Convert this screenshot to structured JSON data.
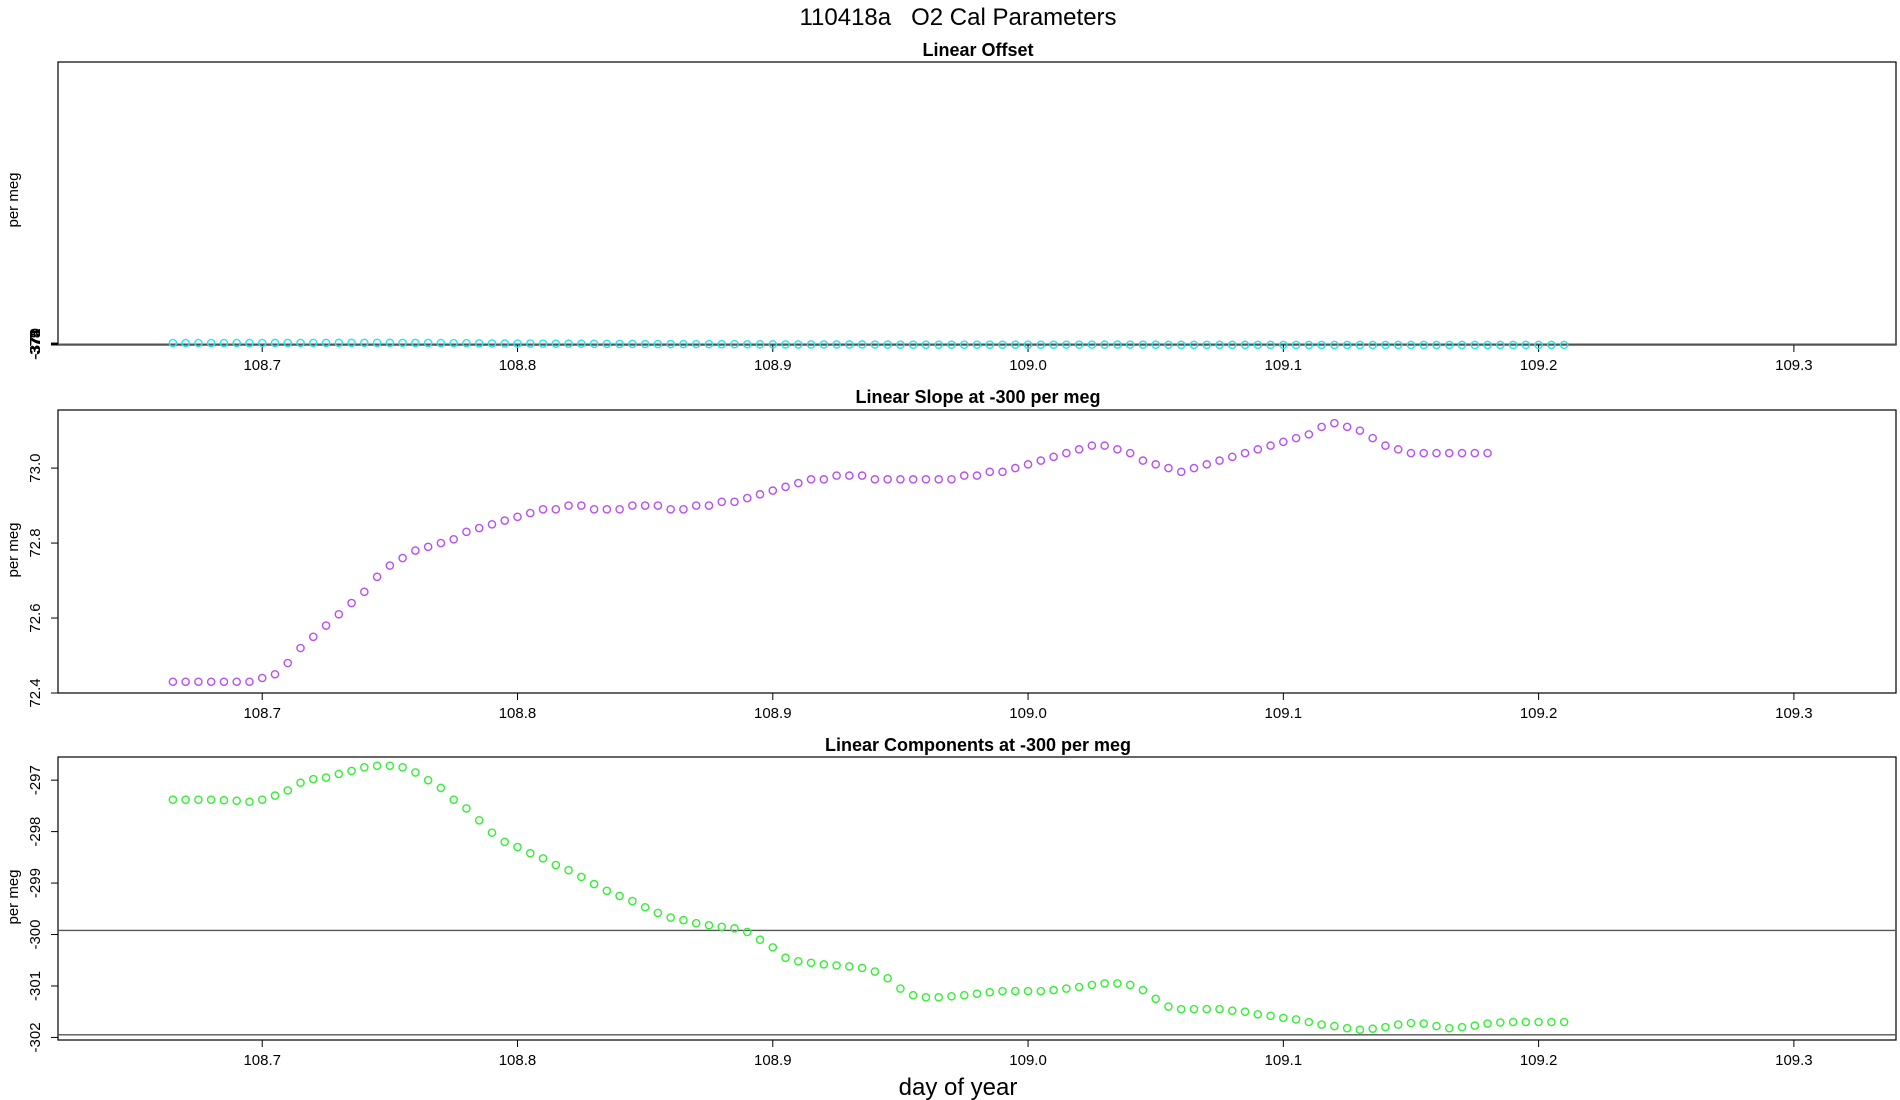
{
  "title": "110418a   O2 Cal Parameters",
  "xlabel": "day of year",
  "chart_data": [
    {
      "type": "scatter",
      "title": "Linear Offset",
      "ylabel": "per meg",
      "color": "#22e5ee",
      "xlim": [
        108.62,
        109.34
      ],
      "ylim": [
        -375.05,
        369.45
      ],
      "xticks": [
        "108.7",
        "108.8",
        "108.9",
        "109.0",
        "109.1",
        "109.2",
        "109.3"
      ],
      "yticks": [
        -375,
        -374,
        -373,
        -372,
        -371,
        -370
      ],
      "hlines": [
        -372.95,
        -374.98
      ],
      "x_start": 108.665,
      "x_step": 0.005,
      "y": [
        -369.8,
        -369.8,
        -369.8,
        -369.8,
        -369.82,
        -369.82,
        -369.85,
        -369.8,
        -369.72,
        -369.6,
        -369.5,
        -369.47,
        -369.45,
        -369.4,
        -369.35,
        -369.3,
        -369.35,
        -369.4,
        -369.45,
        -369.55,
        -369.7,
        -369.85,
        -370.1,
        -370.3,
        -370.6,
        -370.85,
        -371.05,
        -371.2,
        -371.3,
        -371.45,
        -371.55,
        -371.7,
        -371.8,
        -371.95,
        -372.1,
        -372.22,
        -372.35,
        -372.47,
        -372.6,
        -372.65,
        -372.7,
        -372.75,
        -372.8,
        -372.85,
        -372.9,
        -373.05,
        -373.2,
        -373.35,
        -373.47,
        -373.55,
        -373.55,
        -373.58,
        -373.62,
        -373.65,
        -373.7,
        -373.78,
        -373.95,
        -374.15,
        -374.22,
        -374.25,
        -374.25,
        -374.22,
        -374.2,
        -374.18,
        -374.15,
        -374.15,
        -374.15,
        -374.15,
        -374.15,
        -374.15,
        -374.12,
        -374.1,
        -374.05,
        -374.02,
        -374.02,
        -374.05,
        -374.15,
        -374.3,
        -374.45,
        -374.47,
        -374.5,
        -374.5,
        -374.5,
        -374.52,
        -374.55,
        -374.6,
        -374.65,
        -374.7,
        -374.75,
        -374.82,
        -374.87,
        -374.9,
        -374.93,
        -374.95,
        -374.93,
        -374.9,
        -374.87,
        -374.85,
        -374.87,
        -374.9,
        -374.92,
        -374.9,
        -374.88,
        -374.82,
        -374.8,
        -374.78,
        -374.77,
        -374.76,
        -374.75,
        -374.75
      ]
    },
    {
      "type": "scatter",
      "title": "Linear Slope at -300 per meg",
      "ylabel": "per meg",
      "color": "#b84ff0",
      "xlim": [
        108.62,
        109.34
      ],
      "ylim": [
        72.4,
        73.155
      ],
      "xticks": [
        "108.7",
        "108.8",
        "108.9",
        "109.0",
        "109.1",
        "109.2",
        "109.3"
      ],
      "yticks": [
        72.4,
        72.6,
        72.8,
        73.0
      ],
      "hlines": [],
      "x_start": 108.665,
      "x_step": 0.005,
      "y": [
        72.43,
        72.43,
        72.43,
        72.43,
        72.43,
        72.43,
        72.43,
        72.44,
        72.45,
        72.48,
        72.52,
        72.55,
        72.58,
        72.61,
        72.64,
        72.67,
        72.71,
        72.74,
        72.76,
        72.78,
        72.79,
        72.8,
        72.81,
        72.83,
        72.84,
        72.85,
        72.86,
        72.87,
        72.88,
        72.89,
        72.89,
        72.9,
        72.9,
        72.89,
        72.89,
        72.89,
        72.9,
        72.9,
        72.9,
        72.89,
        72.89,
        72.9,
        72.9,
        72.91,
        72.91,
        72.92,
        72.93,
        72.94,
        72.95,
        72.96,
        72.97,
        72.97,
        72.98,
        72.98,
        72.98,
        72.97,
        72.97,
        72.97,
        72.97,
        72.97,
        72.97,
        72.97,
        72.98,
        72.98,
        72.99,
        72.99,
        73.0,
        73.01,
        73.02,
        73.03,
        73.04,
        73.05,
        73.06,
        73.06,
        73.05,
        73.04,
        73.02,
        73.01,
        73.0,
        72.99,
        73.0,
        73.01,
        73.02,
        73.03,
        73.04,
        73.05,
        73.06,
        73.07,
        73.08,
        73.09,
        73.11,
        73.12,
        73.11,
        73.1,
        73.08,
        73.06,
        73.05,
        73.04,
        73.04,
        73.04,
        73.04,
        73.04,
        73.04,
        73.04
      ]
    },
    {
      "type": "scatter",
      "title": "Linear Components at -300 per meg",
      "ylabel": "per meg",
      "color": "#35ee35",
      "xlim": [
        108.62,
        109.34
      ],
      "ylim": [
        -302.05,
        -296.55
      ],
      "xticks": [
        "108.7",
        "108.8",
        "108.9",
        "109.0",
        "109.1",
        "109.2",
        "109.3"
      ],
      "yticks": [
        -302,
        -301,
        -300,
        -299,
        -298,
        -297
      ],
      "hlines": [
        -299.92,
        -301.95
      ],
      "x_start": 108.665,
      "x_step": 0.005,
      "y": [
        -297.38,
        -297.38,
        -297.38,
        -297.38,
        -297.39,
        -297.4,
        -297.42,
        -297.38,
        -297.3,
        -297.2,
        -297.05,
        -296.98,
        -296.95,
        -296.88,
        -296.82,
        -296.75,
        -296.72,
        -296.72,
        -296.75,
        -296.85,
        -297.0,
        -297.15,
        -297.38,
        -297.55,
        -297.78,
        -298.02,
        -298.2,
        -298.3,
        -298.42,
        -298.52,
        -298.65,
        -298.75,
        -298.88,
        -299.02,
        -299.15,
        -299.25,
        -299.35,
        -299.47,
        -299.58,
        -299.67,
        -299.72,
        -299.78,
        -299.82,
        -299.85,
        -299.88,
        -299.95,
        -300.1,
        -300.25,
        -300.45,
        -300.52,
        -300.55,
        -300.58,
        -300.6,
        -300.62,
        -300.65,
        -300.72,
        -300.85,
        -301.05,
        -301.18,
        -301.22,
        -301.22,
        -301.2,
        -301.18,
        -301.15,
        -301.12,
        -301.1,
        -301.1,
        -301.1,
        -301.1,
        -301.08,
        -301.05,
        -301.02,
        -300.98,
        -300.95,
        -300.95,
        -300.98,
        -301.08,
        -301.25,
        -301.4,
        -301.45,
        -301.45,
        -301.45,
        -301.45,
        -301.48,
        -301.5,
        -301.55,
        -301.58,
        -301.62,
        -301.65,
        -301.7,
        -301.75,
        -301.78,
        -301.82,
        -301.85,
        -301.83,
        -301.8,
        -301.75,
        -301.72,
        -301.73,
        -301.78,
        -301.82,
        -301.8,
        -301.77,
        -301.73,
        -301.71,
        -301.7,
        -301.7,
        -301.7,
        -301.7,
        -301.7
      ]
    }
  ]
}
